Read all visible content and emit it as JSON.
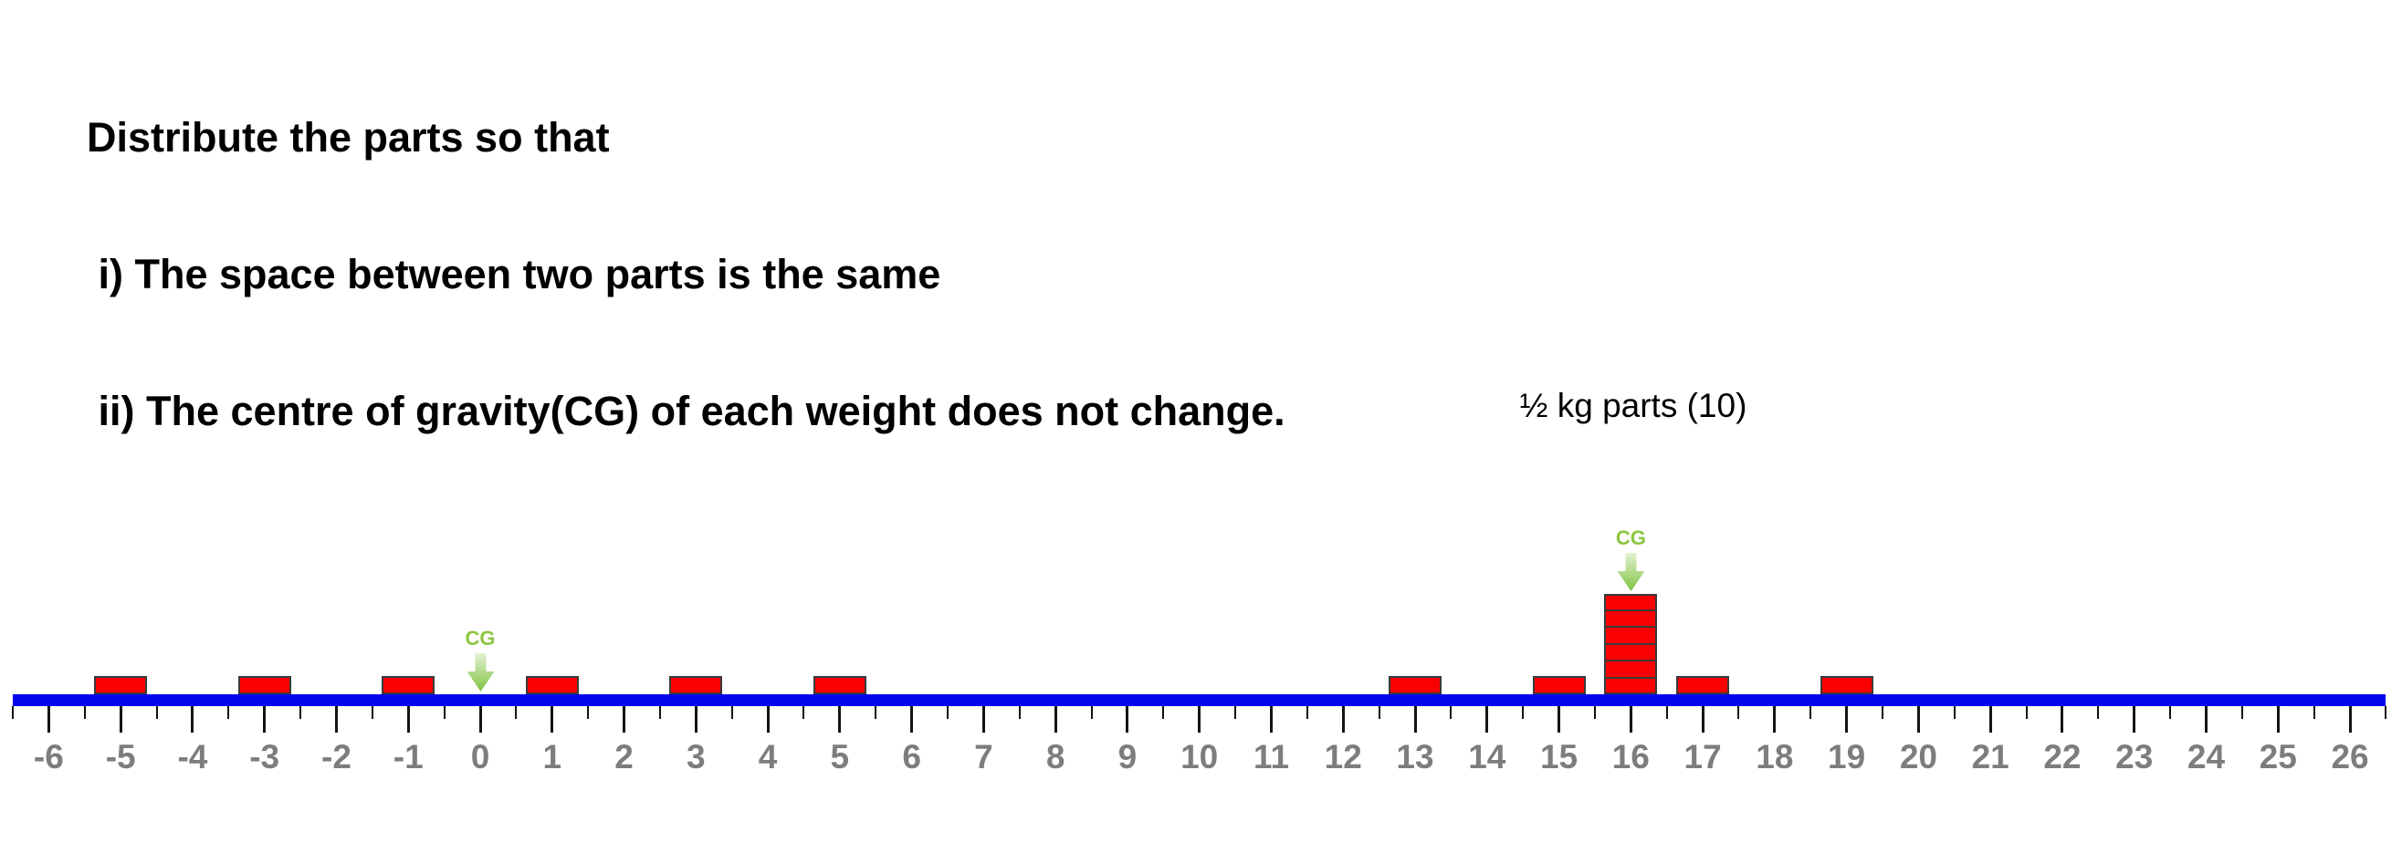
{
  "title": {
    "lines": [
      "Distribute the parts so that",
      " i) The space between two parts is the same",
      " ii) The centre of gravity(CG) of each weight does not change."
    ]
  },
  "annotations": {
    "parts_label": "½ kg parts (10)"
  },
  "chart_data": {
    "type": "number_line_weights",
    "title": "Distribute the parts so that the space between two parts is the same and the CG of each weight does not change",
    "axis": {
      "min": -6.5,
      "max": 26.5,
      "minor_tick_step": 0.5,
      "tick_labels": [
        -6,
        -5,
        -4,
        -3,
        -2,
        -1,
        0,
        1,
        2,
        3,
        4,
        5,
        6,
        7,
        8,
        9,
        10,
        11,
        12,
        13,
        14,
        15,
        16,
        17,
        18,
        19,
        20,
        21,
        22,
        23,
        24,
        25,
        26
      ]
    },
    "weights": [
      {
        "position": -5,
        "parts": 1
      },
      {
        "position": -3,
        "parts": 1
      },
      {
        "position": -1,
        "parts": 1
      },
      {
        "position": 1,
        "parts": 1
      },
      {
        "position": 3,
        "parts": 1
      },
      {
        "position": 5,
        "parts": 1
      },
      {
        "position": 13,
        "parts": 1
      },
      {
        "position": 15,
        "parts": 1
      },
      {
        "position": 16,
        "parts": 6
      },
      {
        "position": 17,
        "parts": 1
      },
      {
        "position": 19,
        "parts": 1
      }
    ],
    "cg_markers": [
      {
        "position": 0,
        "label": "CG"
      },
      {
        "position": 16,
        "label": "CG"
      }
    ],
    "colors": {
      "block_fill": "#fa0000",
      "block_border": "#3a3a3a",
      "bar": "#0505ee",
      "tick": "#141414",
      "tick_label": "#7d7d7d",
      "cg_green": "#8cc63f",
      "arrow_gradient_top": "#e3f2d1",
      "arrow_gradient_bottom": "#7fc241",
      "title_color": "#000000"
    }
  }
}
